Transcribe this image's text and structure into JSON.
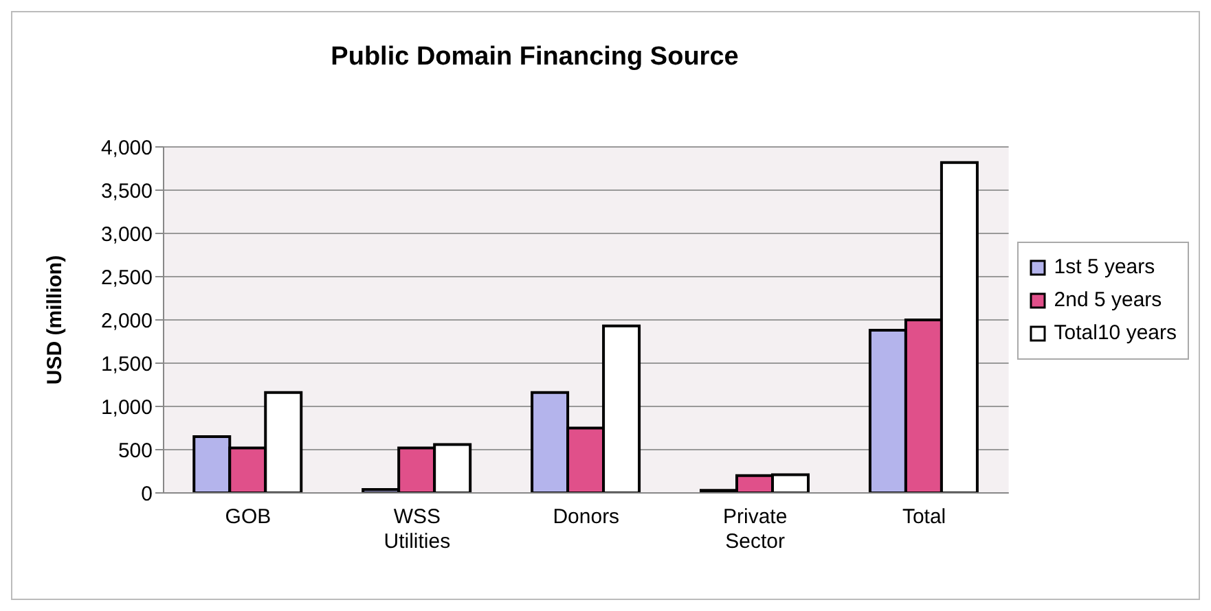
{
  "chart_data": {
    "type": "bar",
    "title": "Public Domain Financing Source",
    "ylabel": "USD (million)",
    "categories": [
      "GOB",
      "WSS Utilities",
      "Donors",
      "Private Sector",
      "Total"
    ],
    "series": [
      {
        "name": "1st 5 years",
        "color": "#b4b4ec",
        "values": [
          650,
          40,
          1160,
          30,
          1880
        ]
      },
      {
        "name": "2nd 5 years",
        "color": "#e0508a",
        "values": [
          520,
          520,
          750,
          200,
          2000
        ]
      },
      {
        "name": "Total10 years",
        "color": "#ffffff",
        "values": [
          1160,
          560,
          1930,
          210,
          3820
        ]
      }
    ],
    "ylim": [
      0,
      4000
    ],
    "yticks": [
      {
        "value": 0,
        "label": "0"
      },
      {
        "value": 500,
        "label": "500"
      },
      {
        "value": 1000,
        "label": "1,000"
      },
      {
        "value": 1500,
        "label": "1,500"
      },
      {
        "value": 2000,
        "label": "2,000"
      },
      {
        "value": 2500,
        "label": "2,500"
      },
      {
        "value": 3000,
        "label": "3,000"
      },
      {
        "value": 3500,
        "label": "3,500"
      },
      {
        "value": 4000,
        "label": "4,000"
      }
    ],
    "grid": "y",
    "legend": "right"
  }
}
